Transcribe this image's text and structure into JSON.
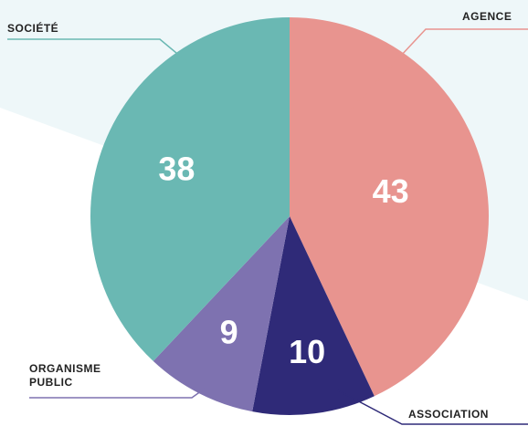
{
  "chart_data": {
    "type": "pie",
    "categories": [
      "AGENCE",
      "ASSOCIATION",
      "ORGANISME PUBLIC",
      "SOCIÉTÉ"
    ],
    "values": [
      43,
      10,
      9,
      38
    ],
    "colors": [
      "#e8948f",
      "#2f2a78",
      "#7e72b0",
      "#6ab8b3"
    ]
  }
}
